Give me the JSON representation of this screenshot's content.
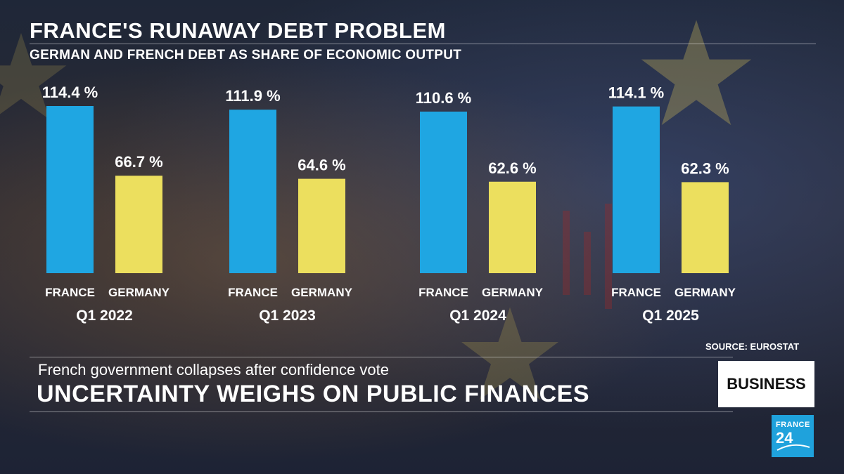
{
  "title": "FRANCE'S RUNAWAY DEBT PROBLEM",
  "subtitle": "GERMAN AND FRENCH DEBT AS SHARE OF ECONOMIC OUTPUT",
  "source": "SOURCE: EUROSTAT",
  "lower_third": {
    "subheadline": "French government collapses after confidence vote",
    "headline": "UNCERTAINTY WEIGHS ON PUBLIC FINANCES",
    "badge": "BUSINESS"
  },
  "logo": {
    "line1": "FRANCE",
    "line2": "24"
  },
  "colors": {
    "france": "#1fa6e2",
    "germany": "#ecdf5e"
  },
  "chart_data": {
    "type": "bar",
    "title": "FRANCE'S RUNAWAY DEBT PROBLEM",
    "subtitle": "GERMAN AND FRENCH DEBT AS SHARE OF ECONOMIC OUTPUT",
    "categories": [
      "Q1 2022",
      "Q1 2023",
      "Q1 2024",
      "Q1 2025"
    ],
    "series": [
      {
        "name": "FRANCE",
        "values": [
          114.4,
          111.9,
          110.6,
          114.1
        ],
        "labels": [
          "114.4 %",
          "111.9 %",
          "110.6 %",
          "114.1 %"
        ]
      },
      {
        "name": "GERMANY",
        "values": [
          66.7,
          64.6,
          62.6,
          62.3
        ],
        "labels": [
          "66.7 %",
          "64.6 %",
          "62.6 %",
          "62.3 %"
        ]
      }
    ],
    "unit": "%",
    "ylim": [
      0,
      114.4
    ],
    "xlabel": "",
    "ylabel": "",
    "grid": false,
    "legend": "none"
  }
}
